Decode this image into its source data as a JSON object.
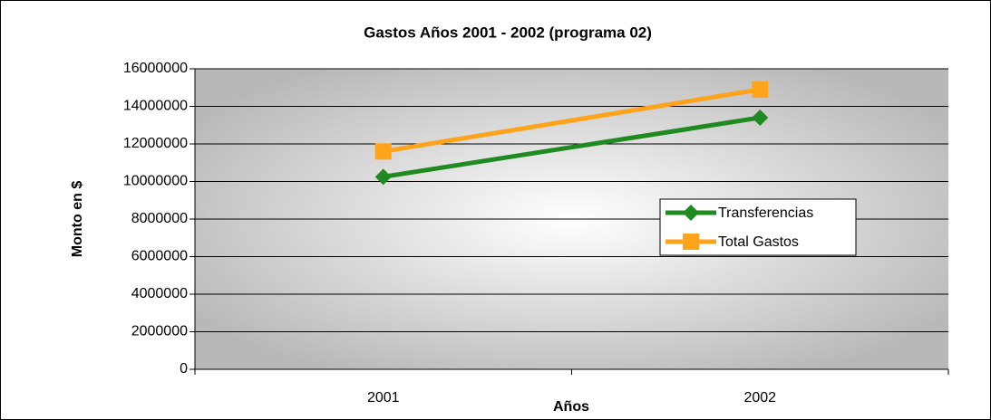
{
  "chart_data": {
    "type": "line",
    "title": "Gastos Años 2001 - 2002 (programa 02)",
    "x_label": "Años",
    "y_label": "Monto en $",
    "categories": [
      "2001",
      "2002"
    ],
    "series": [
      {
        "name": "Transferencias",
        "color": "#1f8a1f",
        "marker": "diamond",
        "values": [
          10250000,
          13400000
        ]
      },
      {
        "name": "Total Gastos",
        "color": "#ffa31a",
        "marker": "square",
        "values": [
          11600000,
          14900000
        ]
      }
    ],
    "ylim": [
      0,
      16000000
    ],
    "yticks": [
      0,
      2000000,
      4000000,
      6000000,
      8000000,
      10000000,
      12000000,
      14000000,
      16000000
    ],
    "grid": true
  }
}
